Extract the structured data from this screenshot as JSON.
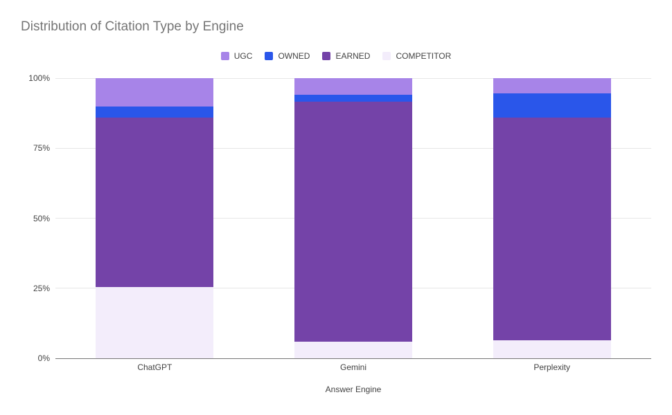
{
  "legend": [
    {
      "label": "UGC",
      "color": "#a784e8"
    },
    {
      "label": "OWNED",
      "color": "#2a56ea"
    },
    {
      "label": "EARNED",
      "color": "#7443a8"
    },
    {
      "label": "COMPETITOR",
      "color": "#f3edfb"
    }
  ],
  "chart_data": {
    "type": "bar",
    "stacked": true,
    "percent": true,
    "title": "Distribution of Citation Type by Engine",
    "xlabel": "Answer Engine",
    "ylabel": "",
    "categories": [
      "ChatGPT",
      "Gemini",
      "Perplexity"
    ],
    "series": [
      {
        "name": "COMPETITOR",
        "color": "#f3edfb",
        "values": [
          25.5,
          6,
          6.5
        ]
      },
      {
        "name": "EARNED",
        "color": "#7443a8",
        "values": [
          60.5,
          85.5,
          79.5
        ]
      },
      {
        "name": "OWNED",
        "color": "#2a56ea",
        "values": [
          4,
          2.5,
          8.5
        ]
      },
      {
        "name": "UGC",
        "color": "#a784e8",
        "values": [
          10,
          6,
          5.5
        ]
      }
    ],
    "y_ticks": [
      "0%",
      "25%",
      "50%",
      "75%",
      "100%"
    ],
    "ylim": [
      0,
      100
    ],
    "grid": true,
    "legend_position": "top"
  }
}
